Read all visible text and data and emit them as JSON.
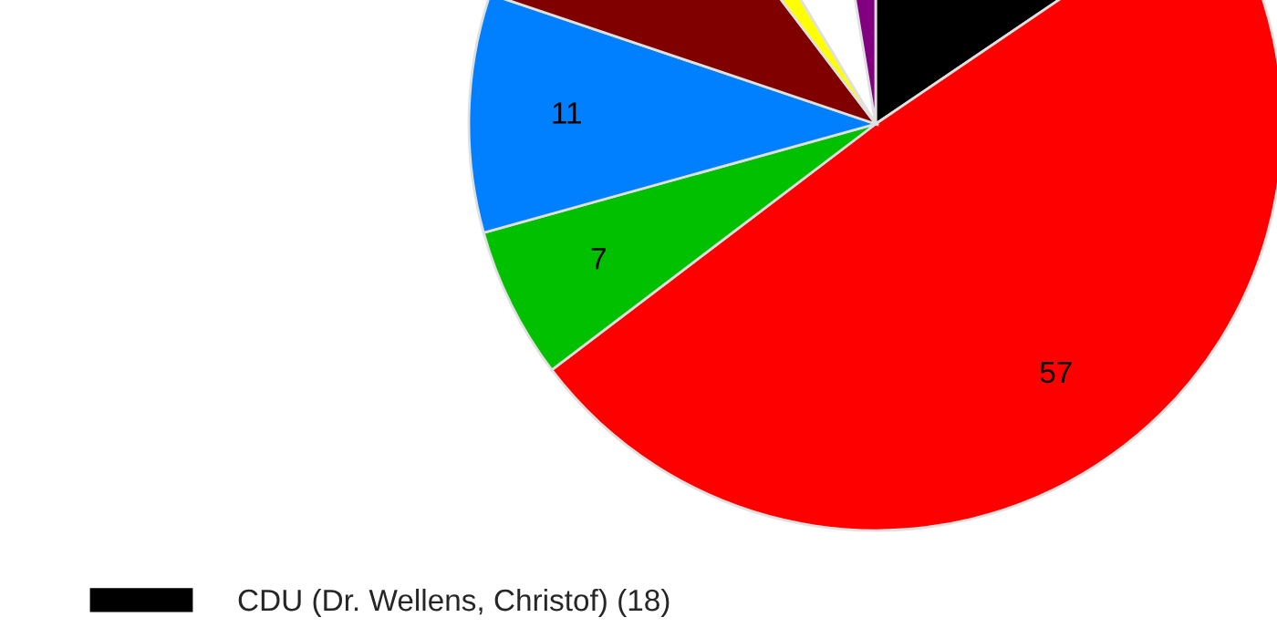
{
  "chart_data": {
    "type": "pie",
    "categories": [
      "CDU (Dr. Wellens, Christof) (18)",
      null,
      null,
      null,
      null,
      null,
      null,
      null
    ],
    "values": [
      18,
      57,
      7,
      11,
      11,
      2,
      7,
      3
    ],
    "colors": [
      "#000000",
      "#ff0000",
      "#00c000",
      "#0080ff",
      "#800000",
      "#ffff00",
      "#ffffff",
      "#800080"
    ],
    "value_labels": [
      null,
      "57",
      "7",
      "11",
      null,
      null,
      null,
      null
    ],
    "legend": "bottom"
  }
}
